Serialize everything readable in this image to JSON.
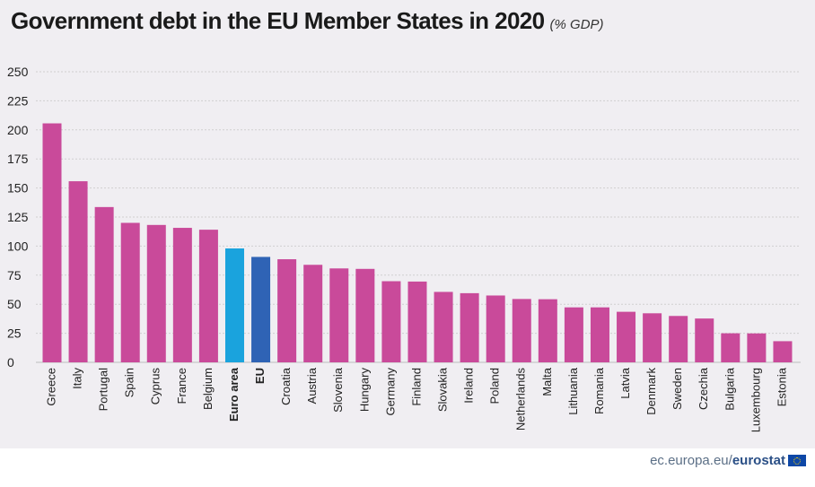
{
  "title": "Government debt in the EU Member States in 2020",
  "subtitle": "(% GDP)",
  "footer": {
    "site": "ec.europa.eu/",
    "brand": "eurostat",
    "logo_icon": "eu-flag-icon"
  },
  "colors": {
    "country": "#c94a9a",
    "euro_area": "#1aa3dd",
    "eu": "#2f63b5",
    "grid": "#cfcfcf",
    "background": "#f0eef2"
  },
  "chart_data": {
    "type": "bar",
    "ylim": [
      0,
      250
    ],
    "yticks": [
      0,
      25,
      50,
      75,
      100,
      125,
      150,
      175,
      200,
      225,
      250
    ],
    "grid": "horizontal dotted",
    "categories": [
      "Greece",
      "Italy",
      "Portugal",
      "Spain",
      "Cyprus",
      "France",
      "Belgium",
      "Euro area",
      "EU",
      "Croatia",
      "Austria",
      "Slovenia",
      "Hungary",
      "Germany",
      "Finland",
      "Slovakia",
      "Ireland",
      "Poland",
      "Netherlands",
      "Malta",
      "Lithuania",
      "Romania",
      "Latvia",
      "Denmark",
      "Sweden",
      "Czechia",
      "Bulgaria",
      "Luxembourg",
      "Estonia"
    ],
    "values": [
      205.6,
      155.8,
      133.6,
      120.0,
      118.2,
      115.7,
      114.1,
      98.0,
      90.7,
      88.7,
      83.9,
      80.8,
      80.4,
      69.8,
      69.5,
      60.6,
      59.5,
      57.5,
      54.5,
      54.3,
      47.3,
      47.3,
      43.5,
      42.2,
      39.9,
      37.7,
      25.0,
      24.9,
      18.2
    ],
    "highlight": {
      "Euro area": "euro_area",
      "EU": "eu"
    },
    "bold_categories": [
      "Euro area",
      "EU"
    ]
  }
}
